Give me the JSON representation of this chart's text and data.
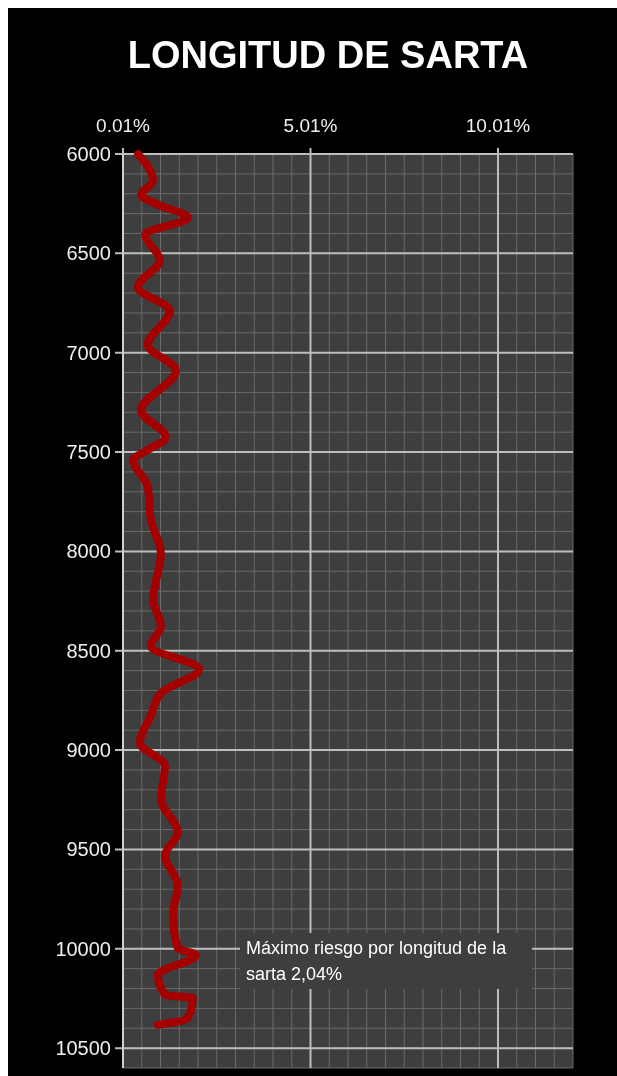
{
  "chart_data": {
    "type": "line",
    "orientation": "horizontal",
    "title": "LONGITUD DE SARTA",
    "x": [
      6000,
      6135,
      6205,
      6255,
      6320,
      6405,
      6535,
      6670,
      6790,
      6960,
      7090,
      7290,
      7425,
      7490,
      7540,
      7675,
      7840,
      8010,
      8175,
      8242,
      8377,
      8477,
      8593,
      8713,
      8828,
      8964,
      9079,
      9245,
      9415,
      9530,
      9681,
      9831,
      9997,
      10032,
      10132,
      10232,
      10248,
      10348,
      10383
    ],
    "series": [
      {
        "color": "#a50000",
        "values": [
          0.41,
          0.81,
          0.49,
          0.94,
          1.74,
          0.6,
          0.99,
          0.41,
          1.26,
          0.67,
          1.42,
          0.49,
          1.15,
          0.67,
          0.28,
          0.67,
          0.75,
          1.02,
          0.86,
          0.81,
          1.02,
          0.75,
          2.04,
          1.02,
          0.75,
          0.46,
          1.13,
          1.02,
          1.47,
          1.13,
          1.47,
          1.34,
          1.47,
          1.95,
          0.94,
          1.13,
          1.87,
          1.74,
          0.94
        ]
      }
    ],
    "xlim": [
      0.01,
      12.01
    ],
    "xticks": [
      {
        "value": 0.01,
        "label": "0.01%"
      },
      {
        "value": 5.01,
        "label": "5.01%"
      },
      {
        "value": 10.01,
        "label": "10.01%"
      }
    ],
    "ylim": [
      10600,
      6000
    ],
    "yticks": [
      6000,
      6500,
      7000,
      7500,
      8000,
      8500,
      9000,
      9500,
      10000,
      10500
    ],
    "grid": true,
    "marker": "none",
    "line_style": "solid",
    "annotations": [
      "Máximo riesgo por longitud de la sarta 2,04%"
    ]
  }
}
